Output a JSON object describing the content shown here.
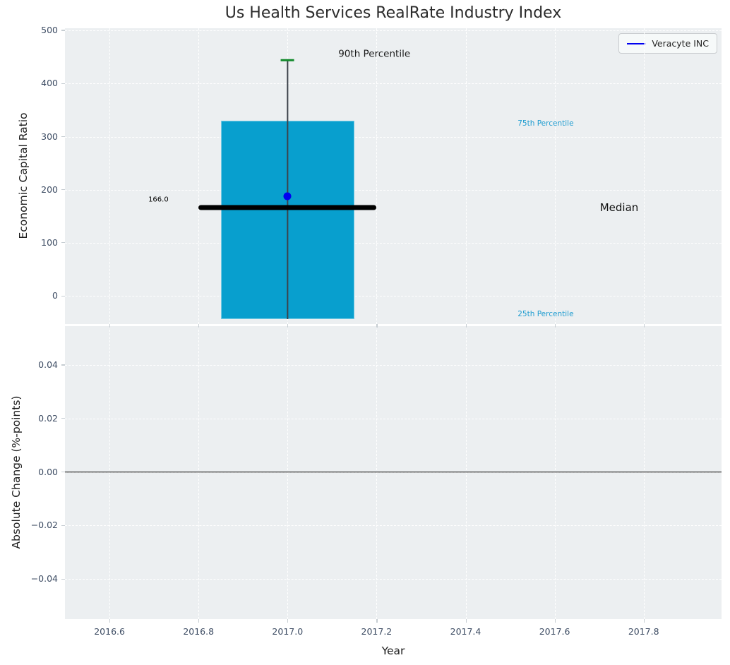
{
  "figure": {
    "title": "Us Health Services RealRate Industry Index",
    "legend": {
      "label": "Veracyte INC"
    },
    "colors": {
      "axes_background": "#eceff1",
      "gridline": "#ffffff",
      "bar_fill": "#089fce",
      "median_line": "#000000",
      "whisker_line": "#3c424a",
      "whisker_cap": "#128a2b",
      "company_dot": "#0000f0",
      "legend_line": "#0000f0",
      "tick_label": "#3d4c63",
      "percentile_label": "#1e9cd0",
      "zero_line": "#000000"
    }
  },
  "chart_data": [
    {
      "type": "box",
      "title": "Us Health Services RealRate Industry Index",
      "ylabel": "Economic Capital Ratio",
      "xlim": [
        2016.5,
        2017.975
      ],
      "ylim": [
        -53,
        504
      ],
      "yticks": [
        500,
        400,
        300,
        200,
        100,
        0
      ],
      "ytick_labels": [
        "500",
        "400",
        "300",
        "200",
        "100",
        "0"
      ],
      "xticks": [
        2016.6,
        2016.8,
        2017.0,
        2017.2,
        2017.4,
        2017.6,
        2017.8
      ],
      "show_xtick_labels": false,
      "grid": true,
      "legend": {
        "label": "Veracyte INC",
        "position": "upper right"
      },
      "box": {
        "center_x": 2017.0,
        "box_width": 0.3,
        "q25": -44,
        "q75": 330,
        "median": 166,
        "median_line_halfspan": 0.2,
        "whisker_top_90th": 444,
        "whisker_bottom": -44,
        "cap_halfwidth": 0.015
      },
      "company_point": {
        "name": "Veracyte INC",
        "x": 2017.0,
        "y": 188
      },
      "annotations": [
        {
          "text": "90th Percentile",
          "x": 2017.195,
          "y": 455,
          "size": 13.5,
          "color": "#1a1a1a"
        },
        {
          "text": "166.0",
          "x": 2016.71,
          "y": 181,
          "size": 10,
          "color": "#000000"
        },
        {
          "text": "75th Percentile",
          "x": 2017.58,
          "y": 323,
          "size": 10.5,
          "color": "#1e9cd0"
        },
        {
          "text": "Median",
          "x": 2017.745,
          "y": 166,
          "size": 15,
          "color": "#111111"
        },
        {
          "text": "25th Percentile",
          "x": 2017.58,
          "y": -36,
          "size": 10.5,
          "color": "#1e9cd0"
        }
      ]
    },
    {
      "type": "line",
      "ylabel": "Absolute Change (%-points)",
      "xlabel": "Year",
      "xlim": [
        2016.5,
        2017.975
      ],
      "ylim": [
        -0.055,
        0.0545
      ],
      "yticks": [
        0.04,
        0.02,
        0,
        -0.02,
        -0.04
      ],
      "ytick_labels": [
        "0.04",
        "0.02",
        "0.00",
        "−0.02",
        "−0.04"
      ],
      "xticks": [
        2016.6,
        2016.8,
        2017.0,
        2017.2,
        2017.4,
        2017.6,
        2017.8
      ],
      "xtick_labels": [
        "2016.6",
        "2016.8",
        "2017.0",
        "2017.2",
        "2017.4",
        "2017.6",
        "2017.8"
      ],
      "show_xtick_labels": true,
      "grid": true,
      "zero_line_y": 0,
      "series": []
    }
  ]
}
